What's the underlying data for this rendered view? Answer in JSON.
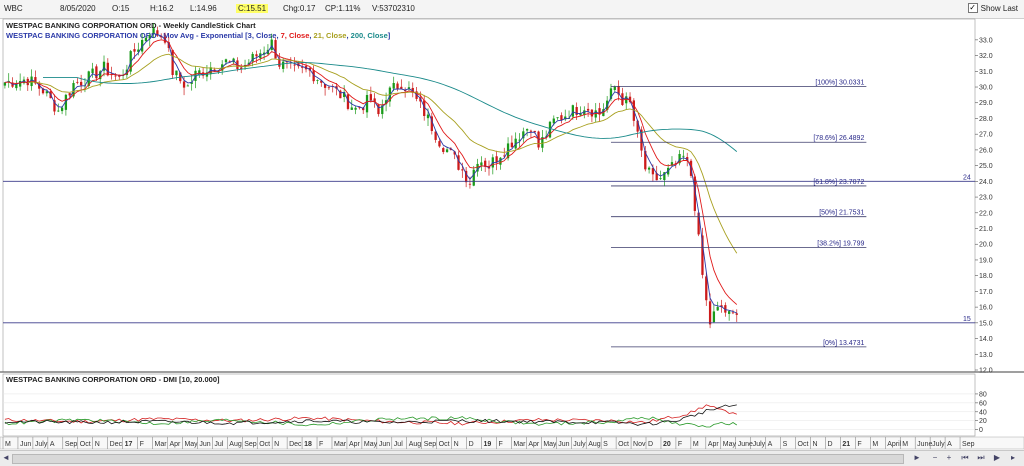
{
  "header": {
    "symbol": "WBC",
    "date": "8/05/2020",
    "open": "O:15",
    "high": "H:16.2",
    "low": "L:14.96",
    "close": "C:15.51",
    "chg": "Chg:0.17",
    "cp": "CP:1.11%",
    "volume": "V:53702310",
    "show_last_label": "Show Last",
    "show_last_checked": true
  },
  "chart_data": [
    {
      "type": "candlestick",
      "title": "WESTPAC BANKING CORPORATION ORD - Weekly CandleStick Chart",
      "subtitle": "WESTPAC BANKING CORPORATION ORD - Mov Avg - Exponential [3, Close, 7, Close, 21, Close, 200, Close]",
      "subtitle_parts": [
        {
          "text": "WESTPAC BANKING CORPORATION ORD - Mov Avg - Exponential [",
          "color": "#2b3aa8"
        },
        {
          "text": "3, Close",
          "color": "#2b3aa8"
        },
        {
          "text": ", ",
          "color": "#2b3aa8"
        },
        {
          "text": "7, Close",
          "color": "#e01a1a"
        },
        {
          "text": ", ",
          "color": "#2b3aa8"
        },
        {
          "text": "21, Close",
          "color": "#a8a020"
        },
        {
          "text": ", ",
          "color": "#2b3aa8"
        },
        {
          "text": "200, Close",
          "color": "#1a8a8a"
        },
        {
          "text": "]",
          "color": "#2b3aa8"
        }
      ],
      "ylim": [
        12,
        33.5
      ],
      "yticks": [
        12.0,
        13.0,
        14.0,
        15.0,
        16.0,
        17.0,
        18.0,
        19.0,
        20.0,
        21.0,
        22.0,
        23.0,
        24.0,
        25.0,
        26.0,
        27.0,
        28.0,
        29.0,
        30.0,
        31.0,
        32.0,
        33.0
      ],
      "x_labels": [
        "M",
        "Jun",
        "July",
        "A",
        "Sep",
        "Oct",
        "N",
        "Dec",
        "17",
        "F",
        "Mar",
        "Apr",
        "May",
        "Jun",
        "Jul",
        "Aug",
        "Sep",
        "Oct",
        "N",
        "Dec",
        "18",
        "F",
        "Mar",
        "Apr",
        "May",
        "Jun",
        "Jul",
        "Aug",
        "Sep",
        "Oct",
        "N",
        "D",
        "19",
        "F",
        "Mar",
        "Apr",
        "May",
        "Jun",
        "July",
        "Aug",
        "S",
        "Oct",
        "Nov",
        "D",
        "20",
        "F",
        "M",
        "Apr",
        "May",
        "June",
        "July",
        "A",
        "S",
        "Oct",
        "N",
        "D",
        "21",
        "F",
        "M",
        "April",
        "M",
        "June",
        "July",
        "A",
        "Sep"
      ],
      "x_label_bold": [
        "17",
        "18",
        "19",
        "20",
        "21"
      ],
      "anchors": [
        [
          0,
          30.3
        ],
        [
          6,
          30.5
        ],
        [
          10,
          29.8
        ],
        [
          14,
          28.5
        ],
        [
          18,
          30.2
        ],
        [
          22,
          30.6
        ],
        [
          26,
          31.2
        ],
        [
          30,
          30.5
        ],
        [
          34,
          32.3
        ],
        [
          38,
          33.6
        ],
        [
          42,
          33.2
        ],
        [
          44,
          31.0
        ],
        [
          46,
          30.4
        ],
        [
          48,
          30.0
        ],
        [
          50,
          30.8
        ],
        [
          54,
          31.3
        ],
        [
          58,
          31.6
        ],
        [
          62,
          31.2
        ],
        [
          66,
          32.0
        ],
        [
          70,
          32.8
        ],
        [
          72,
          31.5
        ],
        [
          76,
          31.0
        ],
        [
          80,
          31.0
        ],
        [
          84,
          30.2
        ],
        [
          88,
          29.5
        ],
        [
          92,
          28.6
        ],
        [
          96,
          29.2
        ],
        [
          98,
          28.2
        ],
        [
          100,
          29.5
        ],
        [
          104,
          30.3
        ],
        [
          106,
          29.8
        ],
        [
          110,
          28.4
        ],
        [
          114,
          26.6
        ],
        [
          118,
          25.4
        ],
        [
          122,
          24.0
        ],
        [
          124,
          25.5
        ],
        [
          127,
          25.0
        ],
        [
          130,
          25.8
        ],
        [
          134,
          26.8
        ],
        [
          138,
          27.6
        ],
        [
          140,
          26.2
        ],
        [
          144,
          27.8
        ],
        [
          148,
          28.4
        ],
        [
          152,
          28.8
        ],
        [
          156,
          28.3
        ],
        [
          158,
          29.1
        ],
        [
          160,
          30.0
        ],
        [
          162,
          29.2
        ],
        [
          164,
          28.9
        ],
        [
          166,
          26.8
        ],
        [
          168,
          24.8
        ],
        [
          170,
          24.1
        ],
        [
          172,
          24.2
        ],
        [
          174,
          24.6
        ],
        [
          176,
          25.1
        ],
        [
          178,
          25.5
        ],
        [
          179,
          25.0
        ],
        [
          180,
          24.4
        ],
        [
          181,
          22.5
        ],
        [
          182,
          20.2
        ],
        [
          183,
          18.0
        ],
        [
          184,
          16.3
        ],
        [
          185,
          15.0
        ],
        [
          186,
          15.5
        ],
        [
          188,
          16.0
        ],
        [
          190,
          15.4
        ],
        [
          192,
          15.51
        ]
      ],
      "horizontal_lines": [
        {
          "value": 24.0,
          "label": "24"
        },
        {
          "value": 15.0,
          "label": "15"
        }
      ],
      "fib_levels": [
        {
          "label": "[100%] 30.0331",
          "value": 30.0331
        },
        {
          "label": "[78.6%] 26.4892",
          "value": 26.4892
        },
        {
          "label": "[61.8%] 23.7072",
          "value": 23.7072
        },
        {
          "label": "[50%] 21.7531",
          "value": 21.7531
        },
        {
          "label": "[38.2%] 19.799",
          "value": 19.799
        },
        {
          "label": "[0%] 13.4731",
          "value": 13.4731
        }
      ],
      "fib_start_week": 159,
      "fib_end_week": 226,
      "total_weeks": 255,
      "last_week": 192
    },
    {
      "type": "line",
      "title": "WESTPAC BANKING CORPORATION ORD - DMI [10, 20.000]",
      "ylim": [
        -12,
        100
      ],
      "yticks": [
        0,
        20,
        40,
        60,
        80
      ],
      "series": [
        {
          "color": "#d42020",
          "anchors": [
            [
              0,
              22
            ],
            [
              20,
              18
            ],
            [
              40,
              24
            ],
            [
              60,
              20
            ],
            [
              80,
              26
            ],
            [
              100,
              18
            ],
            [
              120,
              14
            ],
            [
              140,
              22
            ],
            [
              160,
              20
            ],
            [
              168,
              16
            ],
            [
              176,
              30
            ],
            [
              180,
              38
            ],
            [
              184,
              55
            ],
            [
              188,
              42
            ],
            [
              192,
              38
            ]
          ]
        },
        {
          "color": "#2a9a2a",
          "anchors": [
            [
              0,
              14
            ],
            [
              20,
              22
            ],
            [
              40,
              14
            ],
            [
              60,
              22
            ],
            [
              80,
              10
            ],
            [
              100,
              24
            ],
            [
              120,
              26
            ],
            [
              140,
              12
            ],
            [
              160,
              18
            ],
            [
              168,
              28
            ],
            [
              176,
              14
            ],
            [
              180,
              10
            ],
            [
              184,
              8
            ],
            [
              188,
              14
            ],
            [
              192,
              12
            ]
          ]
        },
        {
          "color": "#111111",
          "anchors": [
            [
              0,
              18
            ],
            [
              20,
              16
            ],
            [
              40,
              18
            ],
            [
              60,
              15
            ],
            [
              80,
              20
            ],
            [
              100,
              16
            ],
            [
              120,
              20
            ],
            [
              140,
              18
            ],
            [
              160,
              16
            ],
            [
              168,
              12
            ],
            [
              176,
              20
            ],
            [
              180,
              30
            ],
            [
              184,
              42
            ],
            [
              188,
              50
            ],
            [
              192,
              55
            ]
          ]
        }
      ]
    }
  ]
}
